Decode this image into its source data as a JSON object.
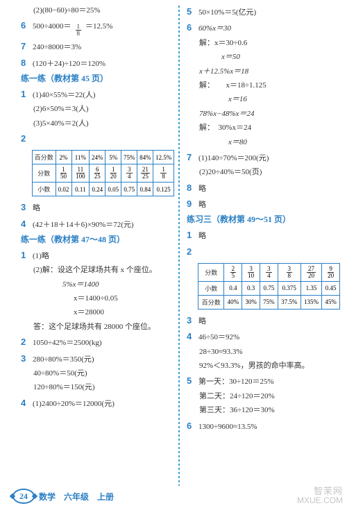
{
  "left": {
    "l1": "(2)(80−60)÷80＝25%",
    "n6": "6",
    "l6": "500÷4000＝",
    "l6_frac_n": "1",
    "l6_frac_d": "8",
    "l6b": "＝12.5%",
    "n7": "7",
    "l7": "240÷8000＝3%",
    "n8": "8",
    "l8": "(120＋24)÷120＝120%",
    "sec1": "练一练（教材第 45 页）",
    "p1": "1",
    "p1a": "(1)40×55%＝22(人)",
    "p1b": "(2)6×50%＝3(人)",
    "p1c": "(3)5×40%＝2(人)",
    "p2": "2",
    "table1": {
      "rows": [
        "百分数",
        "分数",
        "小数"
      ],
      "r1": [
        "2%",
        "11%",
        "24%",
        "5%",
        "75%",
        "84%",
        "12.5%"
      ],
      "r2_fracs": [
        [
          "1",
          "50"
        ],
        [
          "11",
          "100"
        ],
        [
          "6",
          "25"
        ],
        [
          "1",
          "20"
        ],
        [
          "3",
          "4"
        ],
        [
          "21",
          "25"
        ],
        [
          "1",
          "8"
        ]
      ],
      "r3": [
        "0.02",
        "0.11",
        "0.24",
        "0.05",
        "0.75",
        "0.84",
        "0.125"
      ]
    },
    "p3": "3",
    "p3t": "略",
    "p4": "4",
    "p4t": "(42＋18＋14＋6)×90%＝72(元)",
    "sec2": "练一练（教材第 47～48 页）",
    "q1": "1",
    "q1a": "(1)略",
    "q1b": "(2)解：设这个足球场共有 x 个座位。",
    "q1c": "5%x＝1400",
    "q1d": "x＝1400÷0.05",
    "q1e": "x＝28000",
    "q1f": "答：这个足球场共有 28000 个座位。",
    "q2": "2",
    "q2t": "1050÷42%＝2500(kg)",
    "q3": "3",
    "q3a": "280÷80%＝350(元)",
    "q3b": "40÷80%＝50(元)",
    "q3c": "120÷80%＝150(元)",
    "q4": "4",
    "q4a": "(1)2400÷20%＝12000(元)"
  },
  "right": {
    "n5": "5",
    "l5": "50×10%＝5(亿元)",
    "n6": "6",
    "l6a": "60%x＝30",
    "l6b": "解：x＝30÷0.6",
    "l6c": "x＝50",
    "l6d": "x＋12.5%x＝18",
    "l6e": "解：　　x＝18÷1.125",
    "l6f": "x＝16",
    "l6g": "78%x−48%x＝24",
    "l6h": "解：　30%x＝24",
    "l6i": "x＝80",
    "n7": "7",
    "l7a": "(1)140÷70%＝200(元)",
    "l7b": "(2)20÷40%＝50(页)",
    "n8": "8",
    "l8": "略",
    "n9": "9",
    "l9": "略",
    "sec": "练习三（教材第 49～51 页）",
    "p1": "1",
    "p1t": "略",
    "p2": "2",
    "table2": {
      "rows": [
        "分数",
        "小数",
        "百分数"
      ],
      "r1_fracs": [
        [
          "2",
          "5"
        ],
        [
          "3",
          "10"
        ],
        [
          "3",
          "4"
        ],
        [
          "3",
          "8"
        ],
        [
          "27",
          "20"
        ],
        [
          "9",
          "20"
        ]
      ],
      "r2": [
        "0.4",
        "0.3",
        "0.75",
        "0.375",
        "1.35",
        "0.45"
      ],
      "r3": [
        "40%",
        "30%",
        "75%",
        "37.5%",
        "135%",
        "45%"
      ]
    },
    "p3": "3",
    "p3t": "略",
    "p4": "4",
    "p4a": "46÷50＝92%",
    "p4b": "28÷30≈93.3%",
    "p4c": "92%＜93.3%，男孩的命中率高。",
    "p5": "5",
    "p5a": "第一天：30÷120＝25%",
    "p5b": "第二天：24÷120＝20%",
    "p5c": "第三天：36÷120＝30%",
    "p6": "6",
    "p6t": "1300÷9600≈13.5%"
  },
  "footer": {
    "page": "24",
    "text": "数学　六年级　上册"
  },
  "watermark": {
    "top": "智茉网",
    "bottom": "MXUE.COM"
  }
}
